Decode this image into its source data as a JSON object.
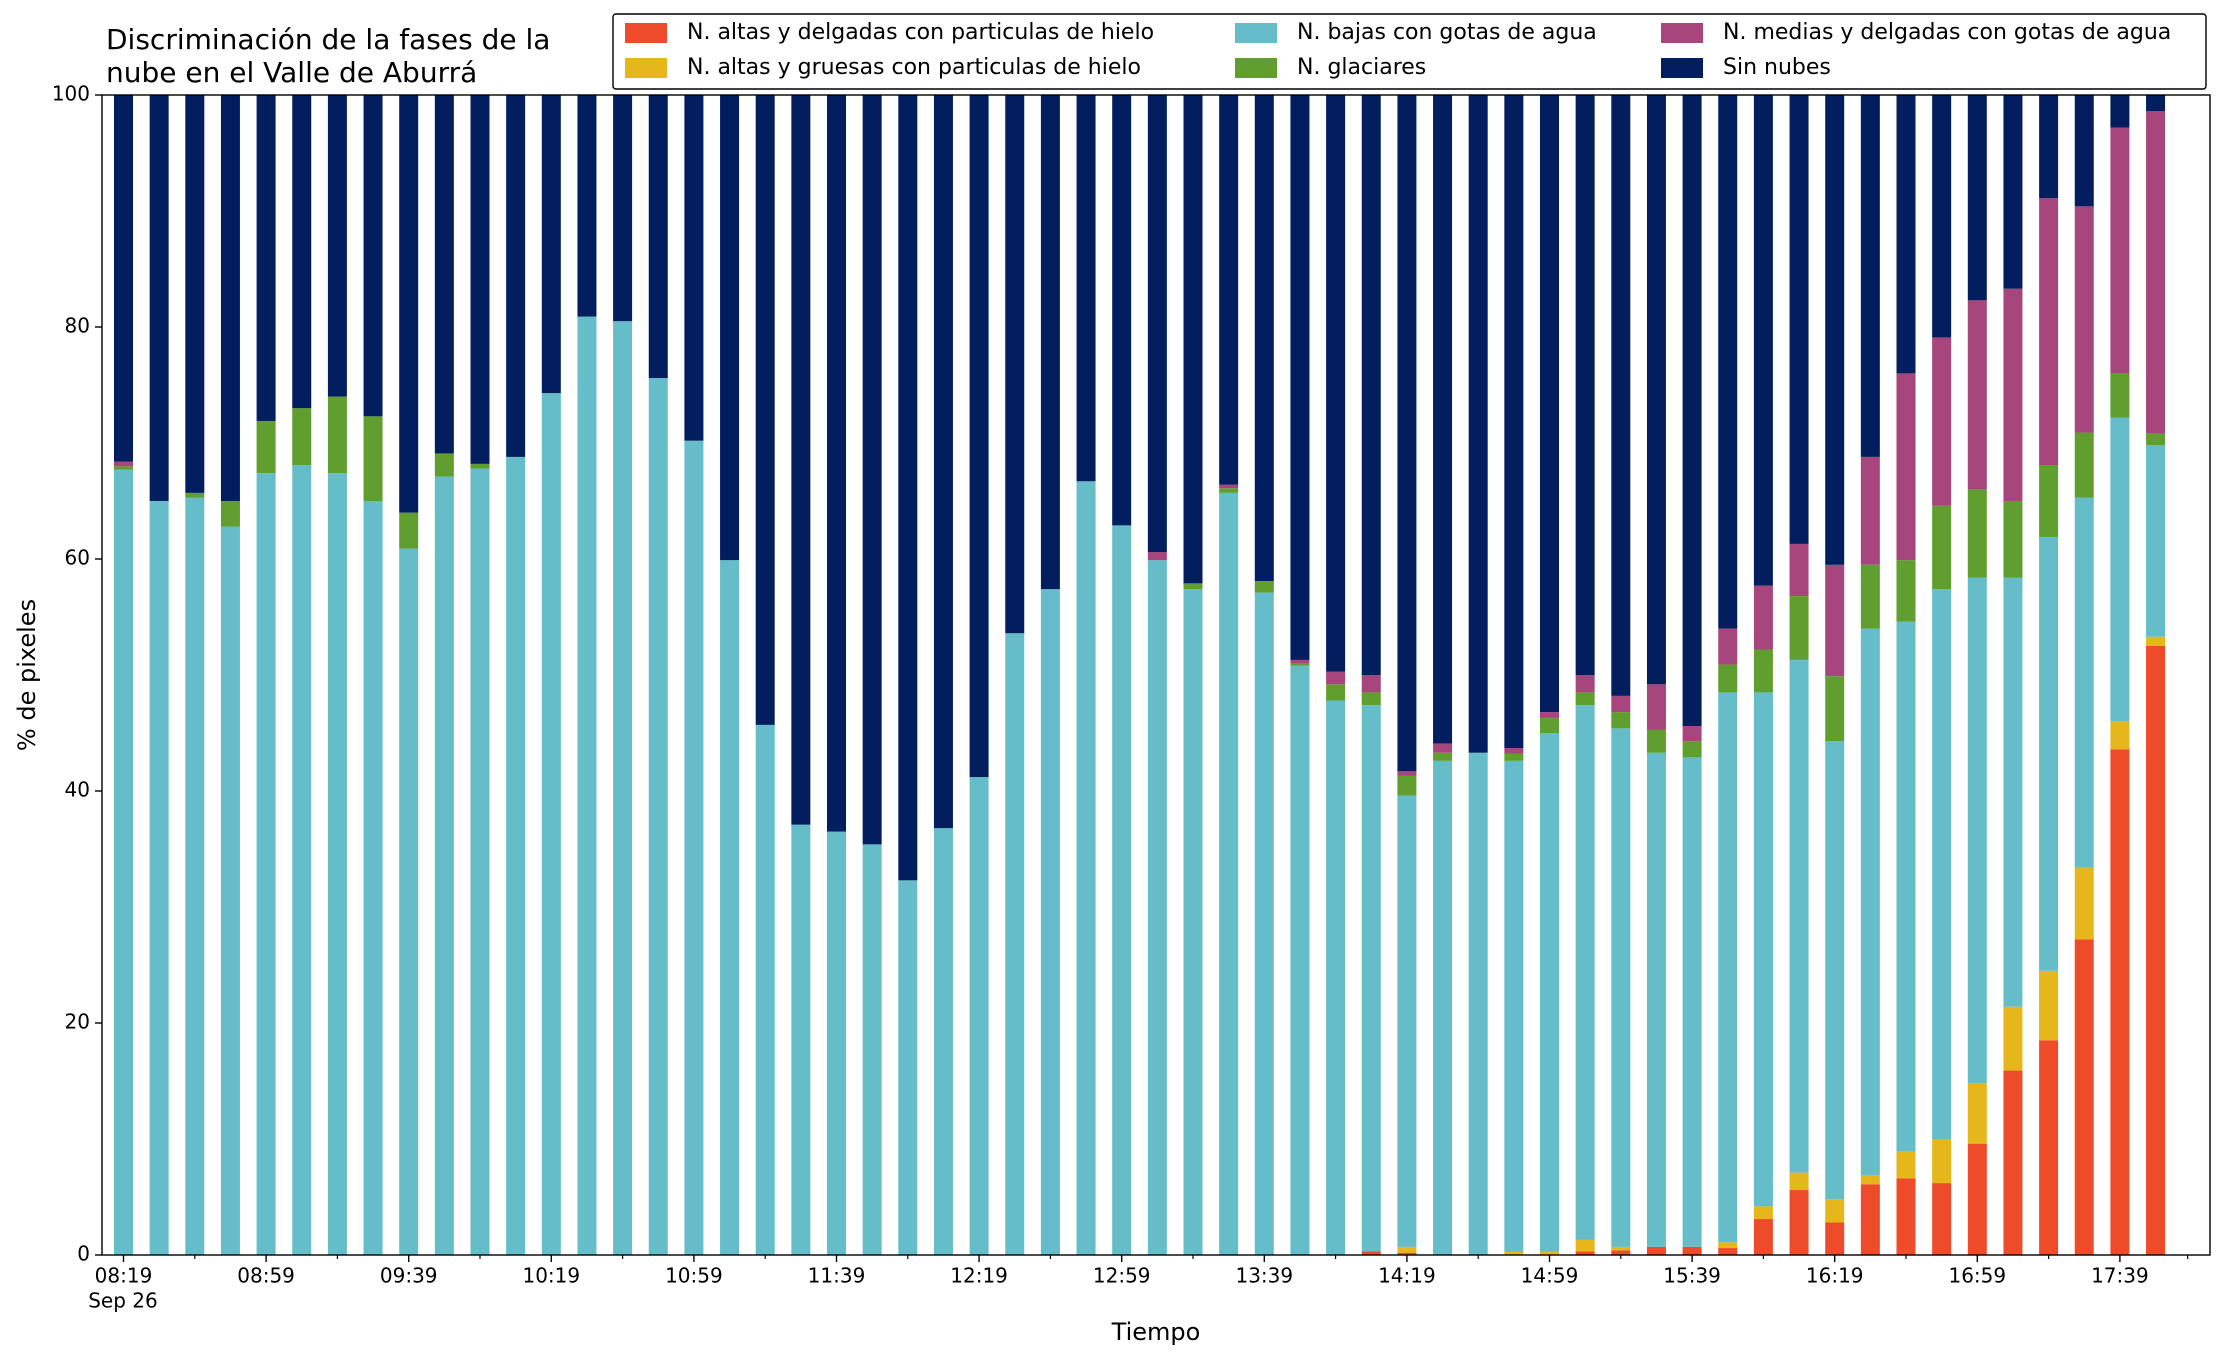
{
  "chart_data": {
    "type": "stacked_bar",
    "title_lines": [
      "Discriminación de la fases de la",
      "nube en el Valle de Aburrá"
    ],
    "xlabel": "Tiempo",
    "ylabel": "% de pixeles",
    "date_label": "Sep 26",
    "categories": [
      "08:19",
      null,
      null,
      null,
      "08:59",
      null,
      null,
      null,
      "09:39",
      null,
      null,
      null,
      "10:19",
      null,
      null,
      null,
      "10:59",
      null,
      null,
      null,
      "11:39",
      null,
      null,
      null,
      "12:19",
      null,
      null,
      null,
      "12:59",
      null,
      null,
      null,
      "13:39",
      null,
      null,
      null,
      "14:19",
      null,
      null,
      null,
      "14:59",
      null,
      null,
      null,
      "15:39",
      null,
      null,
      null,
      "16:19",
      null,
      null,
      null,
      "16:59",
      null,
      null,
      null,
      "17:39",
      null
    ],
    "ylim": [
      0,
      100
    ],
    "yticks": [
      0,
      20,
      40,
      60,
      80,
      100
    ],
    "grid": false,
    "series": [
      {
        "name": "N. altas y delgadas con particulas de hielo",
        "color": "#ee4b2b",
        "values": [
          0,
          0,
          0,
          0,
          0,
          0,
          0,
          0,
          0,
          0,
          0,
          0,
          0,
          0,
          0,
          0,
          0,
          0,
          0,
          0,
          0,
          0,
          0,
          0,
          0,
          0,
          0,
          0,
          0,
          0,
          0,
          0,
          0,
          0,
          0,
          0.3,
          0.2,
          0,
          0,
          0,
          0,
          0.3,
          0.4,
          0.7,
          0.7,
          0.6,
          3.1,
          5.6,
          2.8,
          6.1,
          6.6,
          6.2,
          9.6,
          15.9,
          18.5,
          27.2,
          43.6,
          52.5
        ]
      },
      {
        "name": "N. altas y gruesas con particulas de hielo",
        "color": "#e5b71a",
        "values": [
          0,
          0,
          0,
          0,
          0,
          0,
          0,
          0,
          0,
          0,
          0,
          0,
          0,
          0,
          0,
          0,
          0,
          0,
          0,
          0,
          0,
          0,
          0,
          0,
          0,
          0,
          0,
          0,
          0,
          0,
          0,
          0,
          0,
          0,
          0,
          0,
          0.5,
          0,
          0,
          0.3,
          0.3,
          1.0,
          0.3,
          0,
          0,
          0.5,
          1.1,
          1.5,
          2.0,
          0.8,
          2.3,
          3.8,
          5.2,
          5.5,
          6.0,
          6.2,
          2.4,
          0.8
        ]
      },
      {
        "name": "N. bajas con gotas de agua",
        "color": "#65bdc9",
        "values": [
          67.7,
          65.0,
          65.3,
          62.8,
          67.4,
          68.1,
          67.4,
          65.0,
          60.9,
          67.1,
          67.8,
          68.8,
          74.3,
          80.9,
          80.5,
          75.6,
          70.2,
          59.9,
          45.7,
          37.1,
          36.5,
          35.4,
          32.3,
          36.8,
          41.2,
          53.6,
          57.4,
          66.7,
          62.9,
          59.9,
          57.4,
          65.7,
          57.1,
          50.8,
          47.8,
          47.1,
          38.9,
          42.6,
          43.3,
          42.3,
          44.7,
          46.1,
          44.7,
          42.6,
          42.2,
          47.4,
          44.3,
          44.2,
          39.5,
          47.1,
          45.7,
          47.4,
          43.6,
          37.0,
          37.4,
          31.9,
          26.2,
          16.5
        ]
      },
      {
        "name": "N. glaciares",
        "color": "#5f9e2f",
        "values": [
          0.3,
          0,
          0.4,
          2.2,
          4.5,
          4.9,
          6.6,
          7.3,
          3.1,
          2.0,
          0.4,
          0,
          0,
          0,
          0,
          0,
          0,
          0,
          0,
          0,
          0,
          0,
          0,
          0,
          0,
          0,
          0,
          0,
          0,
          0,
          0.5,
          0.4,
          1.0,
          0.2,
          1.4,
          1.1,
          1.7,
          0.7,
          0,
          0.6,
          1.3,
          1.1,
          1.4,
          2.0,
          1.4,
          2.4,
          3.7,
          5.5,
          5.6,
          5.5,
          5.3,
          7.2,
          7.6,
          6.6,
          6.2,
          5.6,
          3.8,
          1.0
        ]
      },
      {
        "name": "N. medias y delgadas con gotas de agua",
        "color": "#a6467c",
        "values": [
          0.4,
          0,
          0,
          0,
          0,
          0,
          0,
          0,
          0,
          0,
          0,
          0,
          0,
          0,
          0,
          0,
          0,
          0,
          0,
          0,
          0,
          0,
          0,
          0,
          0,
          0,
          0,
          0,
          0,
          0.7,
          0,
          0.3,
          0,
          0.3,
          1.1,
          1.5,
          0.4,
          0.8,
          0,
          0.5,
          0.5,
          1.5,
          1.4,
          3.9,
          1.3,
          3.1,
          5.5,
          4.5,
          9.6,
          9.3,
          16.1,
          14.5,
          16.3,
          18.3,
          23.0,
          19.5,
          21.2,
          27.8
        ]
      },
      {
        "name": "Sin nubes",
        "color": "#031e5f",
        "values": [
          31.6,
          35.0,
          34.3,
          35.0,
          28.1,
          27.0,
          26.0,
          27.7,
          36.0,
          30.9,
          31.8,
          31.2,
          25.7,
          19.1,
          19.5,
          24.4,
          29.8,
          40.1,
          54.3,
          62.9,
          63.5,
          64.6,
          67.7,
          63.2,
          58.8,
          46.4,
          42.6,
          33.3,
          37.1,
          39.4,
          42.1,
          33.6,
          41.9,
          48.7,
          49.7,
          50.0,
          58.3,
          55.9,
          56.7,
          56.3,
          53.2,
          50.0,
          51.8,
          50.8,
          54.4,
          46.0,
          42.3,
          38.7,
          40.5,
          31.2,
          24.0,
          20.9,
          17.7,
          16.7,
          8.9,
          9.6,
          2.8,
          1.4
        ]
      }
    ]
  }
}
